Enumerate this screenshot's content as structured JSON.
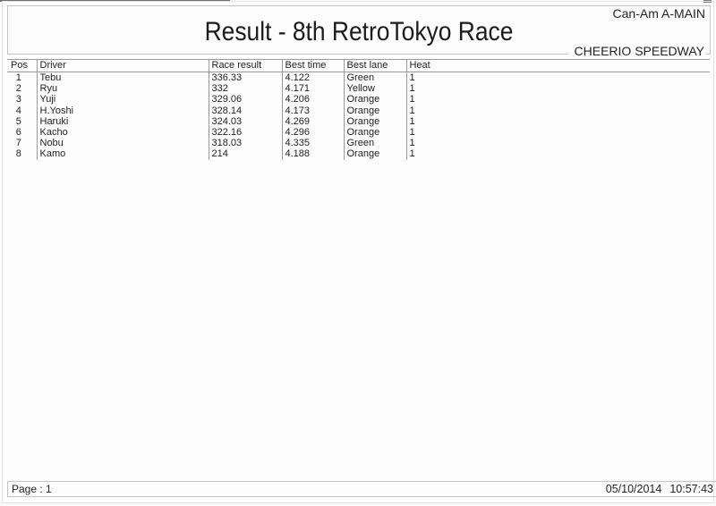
{
  "header": {
    "class_name": "Can-Am A-MAIN",
    "title": "Result - 8th RetroTokyo Race",
    "track_name": "CHEERIO SPEEDWAY"
  },
  "table": {
    "columns": [
      "Pos",
      "Driver",
      "Race result",
      "Best time",
      "Best lane",
      "Heat"
    ],
    "rows": [
      [
        "1",
        "Tebu",
        "336.33",
        "4.122",
        "Green",
        "1"
      ],
      [
        "2",
        "Ryu",
        "332",
        "4.171",
        "Yellow",
        "1"
      ],
      [
        "3",
        "Yuji",
        "329.06",
        "4.206",
        "Orange",
        "1"
      ],
      [
        "4",
        "H.Yoshi",
        "328.14",
        "4.173",
        "Orange",
        "1"
      ],
      [
        "5",
        "Haruki",
        "324.03",
        "4.269",
        "Orange",
        "1"
      ],
      [
        "6",
        "Kacho",
        "322.16",
        "4.296",
        "Orange",
        "1"
      ],
      [
        "7",
        "Nobu",
        "318.03",
        "4.335",
        "Green",
        "1"
      ],
      [
        "8",
        "Kamo",
        "214",
        "4.188",
        "Orange",
        "1"
      ]
    ]
  },
  "footer": {
    "page_label": "Page : 1",
    "date": "05/10/2014",
    "time": "10:57:43"
  }
}
